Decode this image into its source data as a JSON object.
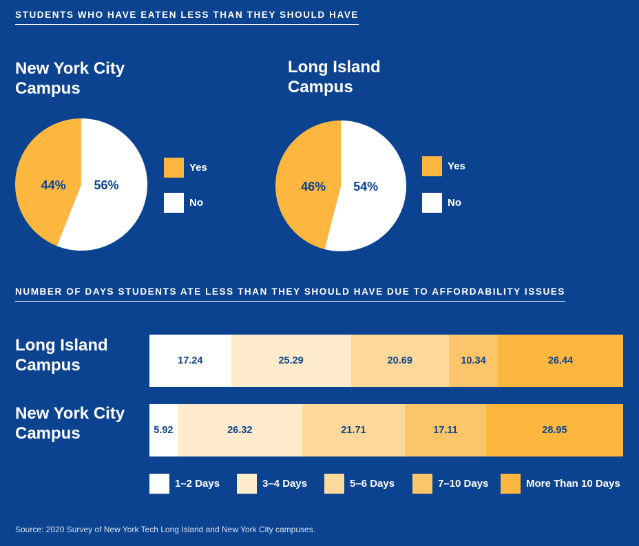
{
  "colors": {
    "background": "#0B4390",
    "yes": "#FDB73E",
    "no": "#FFFFFF",
    "days_1_2": "#FFFFFF",
    "days_3_4": "#FDEBCB",
    "days_5_6": "#FCD89A",
    "days_7_10": "#FDC56A",
    "days_10_plus": "#FDB73E"
  },
  "section1_title": "STUDENTS WHO HAVE EATEN LESS THAN THEY SHOULD HAVE",
  "section2_title": "NUMBER OF DAYS STUDENTS ATE LESS THAN THEY SHOULD HAVE DUE TO AFFORDABILITY ISSUES",
  "source": "Source: 2020 Survey of New York Tech Long Island and New York City campuses.",
  "chart_data": [
    {
      "type": "pie",
      "title": "New York City\nCampus",
      "series": [
        {
          "name": "Yes",
          "value": 44,
          "label": "44%"
        },
        {
          "name": "No",
          "value": 56,
          "label": "56%"
        }
      ]
    },
    {
      "type": "pie",
      "title": "Long Island\nCampus",
      "series": [
        {
          "name": "Yes",
          "value": 46,
          "label": "46%"
        },
        {
          "name": "No",
          "value": 54,
          "label": "54%"
        }
      ]
    },
    {
      "type": "bar",
      "stacked": true,
      "orientation": "horizontal",
      "categories": [
        "Long Island\nCampus",
        "New York City\nCampus"
      ],
      "series": [
        {
          "name": "1–2 Days",
          "values": [
            17.24,
            5.92
          ]
        },
        {
          "name": "3–4 Days",
          "values": [
            25.29,
            26.32
          ]
        },
        {
          "name": "5–6 Days",
          "values": [
            20.69,
            21.71
          ]
        },
        {
          "name": "7–10 Days",
          "values": [
            10.34,
            17.11
          ]
        },
        {
          "name": "More Than 10 Days",
          "values": [
            26.44,
            28.95
          ]
        }
      ],
      "legend_position": "bottom"
    }
  ]
}
